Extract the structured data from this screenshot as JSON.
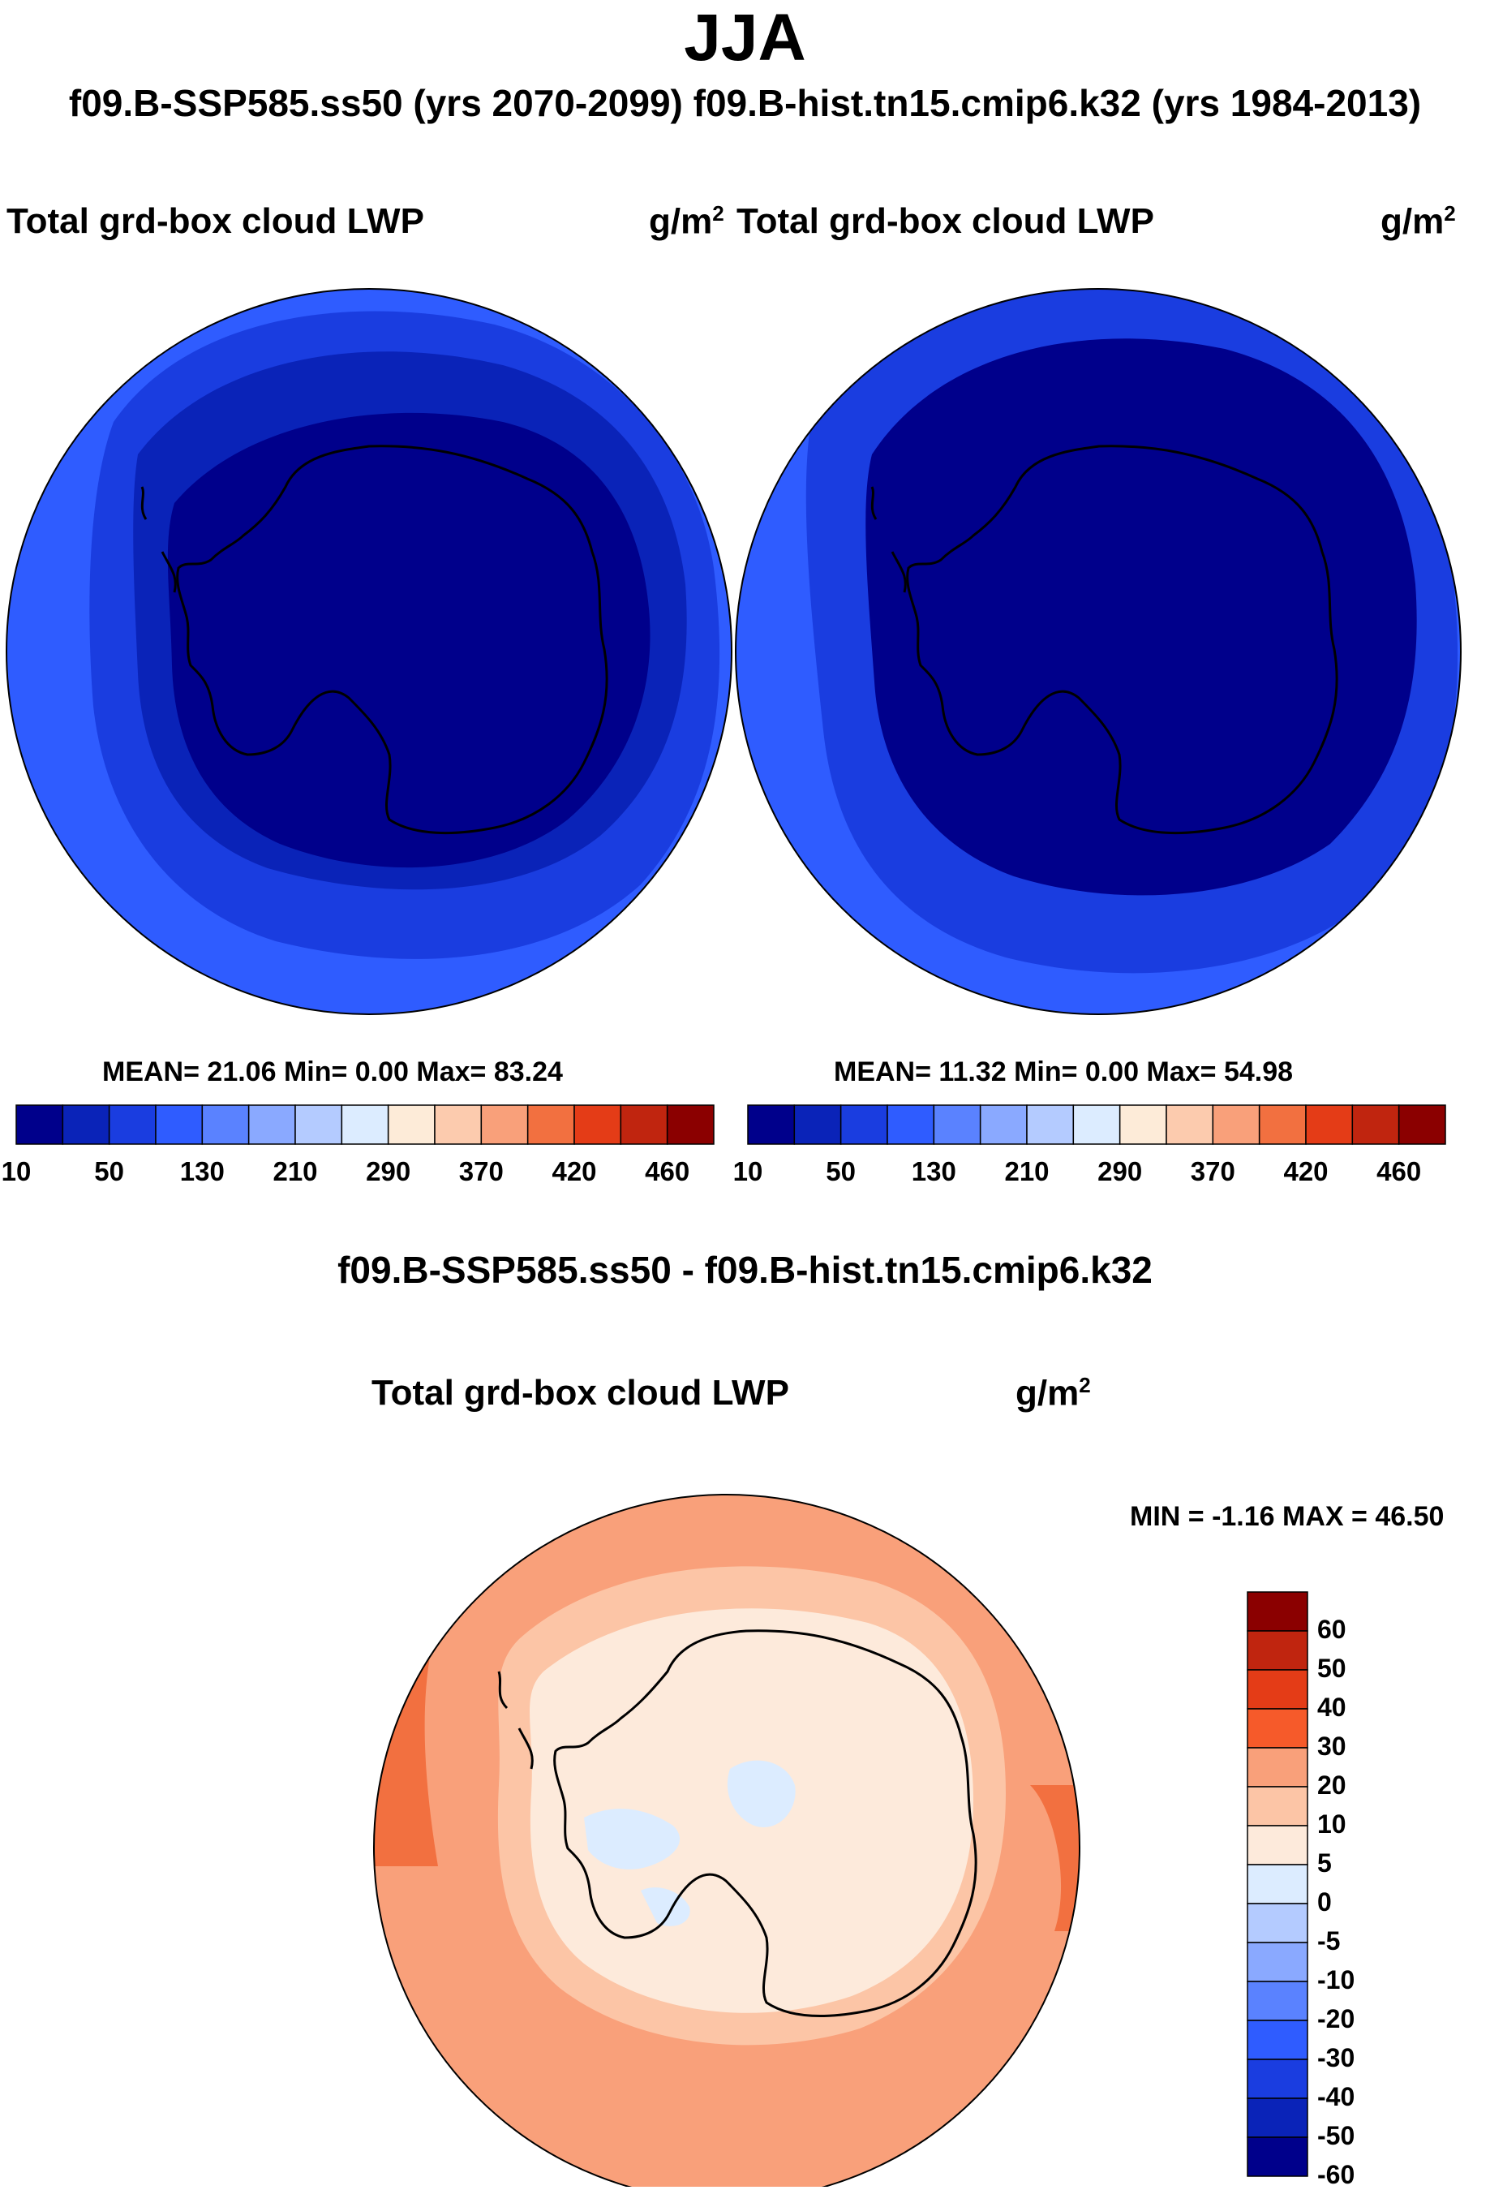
{
  "title": "JJA",
  "subtitle": "f09.B-SSP585.ss50 (yrs 2070-2099)  f09.B-hist.tn15.cmip6.k32 (yrs 1984-2013)",
  "difference_title": "f09.B-SSP585.ss50 - f09.B-hist.tn15.cmip6.k32",
  "panels": [
    {
      "variable": "Total grd-box cloud LWP",
      "unit": "g/m",
      "unit_exp": "2",
      "stats": "MEAN=  21.06  Min=    0.00  Max=  83.24"
    },
    {
      "variable": "Total grd-box cloud LWP",
      "unit": "g/m",
      "unit_exp": "2",
      "stats": "MEAN=  11.32  Min=    0.00  Max=  54.98"
    }
  ],
  "difference_panel": {
    "variable": "Total grd-box cloud LWP",
    "unit": "g/m",
    "unit_exp": "2",
    "stats": "MIN =  -1.16 MAX =  46.50"
  },
  "colorbar_levels": {
    "ticks": [
      "10",
      "50",
      "130",
      "210",
      "290",
      "370",
      "420",
      "460"
    ],
    "colors": [
      "#00008b",
      "#0a23b8",
      "#1a3de0",
      "#2f5cff",
      "#5a82ff",
      "#8aa9ff",
      "#b4cbff",
      "#dcecff",
      "#fdebd8",
      "#fccbae",
      "#f9a07a",
      "#f27040",
      "#e43c17",
      "#c0250f",
      "#8b0000"
    ]
  },
  "diff_colorbar_levels": {
    "ticks": [
      "60",
      "50",
      "40",
      "30",
      "20",
      "10",
      "5",
      "0",
      "-5",
      "-10",
      "-20",
      "-30",
      "-40",
      "-50",
      "-60"
    ],
    "colors": [
      "#8b0000",
      "#c0250f",
      "#e43c17",
      "#f65a2a",
      "#f9a07a",
      "#fcc5a6",
      "#fdeadb",
      "#dcecff",
      "#b4cbff",
      "#8aa9ff",
      "#5a82ff",
      "#2f5cff",
      "#1a3de0",
      "#0a23b8",
      "#00008b"
    ]
  },
  "map_colors": {
    "outer": "#2f5cff",
    "middle": "#1a3de0",
    "inner": "#0a23b8",
    "core": "#00008b",
    "diff_outer": "#f9a07a",
    "diff_band": "#f27040",
    "diff_inner": "#fcc5a6",
    "diff_core": "#fdeadb",
    "diff_neg": "#dcecff"
  }
}
